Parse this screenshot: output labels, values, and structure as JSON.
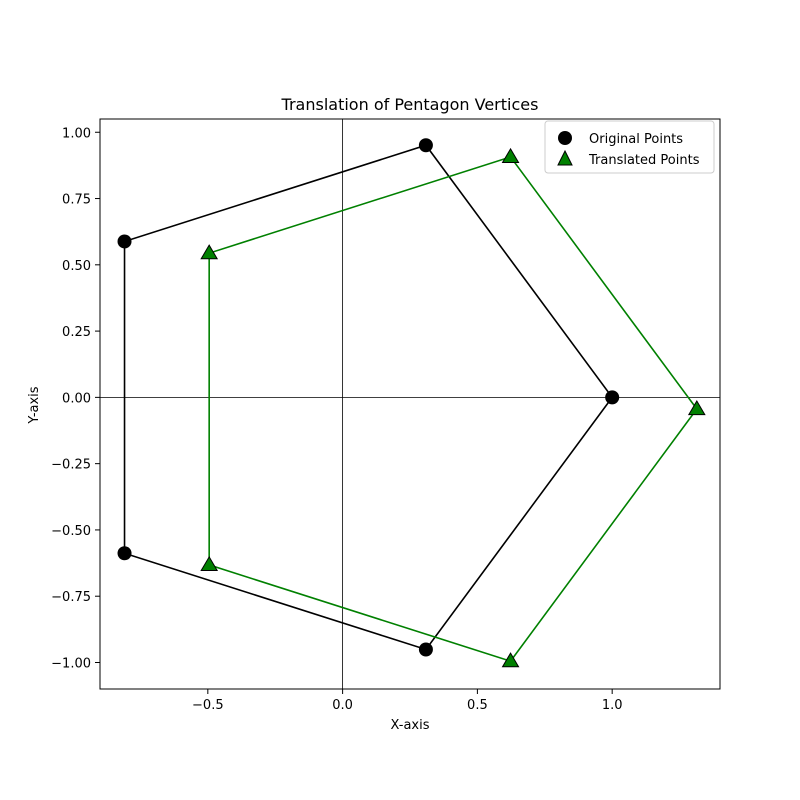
{
  "chart_data": {
    "type": "scatter",
    "title": "Translation of Pentagon Vertices",
    "xlabel": "X-axis",
    "ylabel": "Y-axis",
    "xlim": [
      -0.9,
      1.4
    ],
    "ylim": [
      -1.1,
      1.05
    ],
    "xticks": [
      -0.5,
      0.0,
      0.5,
      1.0
    ],
    "xtick_labels": [
      "−0.5",
      "0.0",
      "0.5",
      "1.0"
    ],
    "yticks": [
      -1.0,
      -0.75,
      -0.5,
      -0.25,
      0.0,
      0.25,
      0.5,
      0.75,
      1.0
    ],
    "ytick_labels": [
      "−1.00",
      "−0.75",
      "−0.50",
      "−0.25",
      "0.00",
      "0.25",
      "0.50",
      "0.75",
      "1.00"
    ],
    "grid": false,
    "reference_lines": {
      "x": 0,
      "y": 0
    },
    "legend_position": "top-right",
    "series": [
      {
        "name": "Original Points",
        "marker": "circle",
        "color": "#000000",
        "line_color": "#000000",
        "closed": true,
        "x": [
          1.0,
          0.309,
          -0.809,
          -0.809,
          0.309
        ],
        "y": [
          0.0,
          0.951,
          0.588,
          -0.588,
          -0.951
        ]
      },
      {
        "name": "Translated Points",
        "marker": "triangle",
        "color": "#008000",
        "line_color": "#008000",
        "closed": true,
        "x": [
          1.314,
          0.623,
          -0.495,
          -0.495,
          0.623
        ],
        "y": [
          -0.044,
          0.907,
          0.544,
          -0.632,
          -0.995
        ]
      }
    ]
  }
}
